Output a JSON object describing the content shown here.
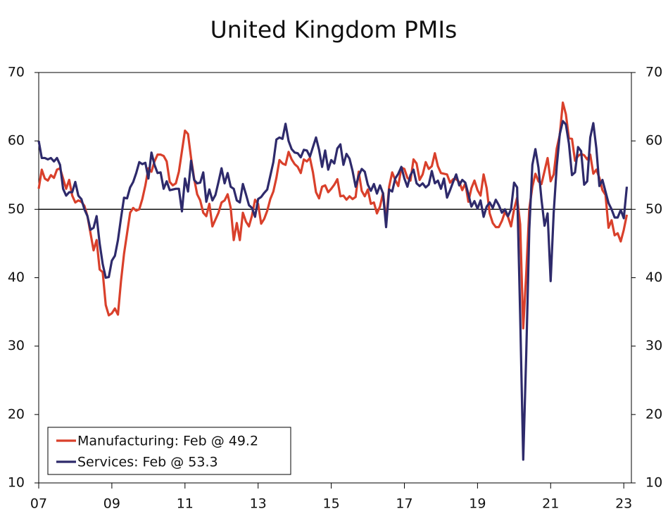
{
  "chart_data": {
    "type": "line",
    "title": "United Kingdom PMIs",
    "series": [
      {
        "name": "Manufacturing: Feb @ 49.2",
        "color": "#d9402b",
        "values": [
          53.0,
          55.8,
          54.5,
          54.2,
          55.0,
          54.6,
          55.8,
          56.0,
          54.5,
          53.0,
          54.3,
          52.0,
          51.0,
          51.3,
          51.1,
          50.5,
          49.0,
          46.5,
          44.0,
          45.5,
          41.2,
          40.8,
          36.0,
          34.5,
          34.8,
          35.5,
          34.6,
          39.5,
          43.5,
          46.5,
          49.5,
          50.2,
          49.8,
          50.0,
          51.5,
          53.5,
          56.0,
          55.5,
          57.0,
          58.0,
          58.0,
          57.8,
          57.0,
          54.0,
          53.5,
          53.8,
          55.5,
          58.5,
          61.5,
          61.0,
          57.5,
          54.5,
          52.2,
          51.3,
          49.5,
          49.0,
          50.8,
          47.5,
          48.5,
          49.5,
          51.0,
          51.3,
          52.2,
          50.2,
          45.5,
          48.0,
          45.5,
          49.5,
          48.2,
          47.5,
          49.1,
          51.4,
          50.8,
          47.9,
          48.6,
          49.8,
          51.5,
          52.6,
          54.6,
          57.2,
          56.7,
          56.5,
          58.4,
          57.3,
          56.6,
          56.2,
          55.3,
          57.3,
          57.0,
          57.5,
          55.4,
          52.5,
          51.6,
          53.3,
          53.5,
          52.5,
          53.0,
          53.6,
          54.4,
          51.9,
          52.0,
          51.4,
          51.9,
          51.5,
          51.8,
          55.5,
          52.7,
          51.9,
          52.9,
          50.8,
          51.0,
          49.4,
          50.4,
          52.4,
          48.3,
          53.3,
          55.4,
          54.3,
          53.4,
          56.1,
          55.9,
          54.6,
          54.2,
          57.3,
          56.7,
          54.3,
          55.1,
          56.9,
          55.9,
          56.3,
          58.2,
          56.3,
          55.3,
          55.2,
          55.1,
          53.9,
          54.4,
          54.4,
          54.0,
          52.8,
          53.8,
          51.1,
          53.1,
          54.2,
          52.8,
          52.0,
          55.1,
          53.1,
          49.4,
          48.0,
          47.4,
          47.4,
          48.3,
          49.6,
          48.9,
          47.5,
          50.0,
          51.7,
          47.8,
          32.6,
          40.7,
          50.1,
          53.3,
          55.2,
          54.1,
          53.7,
          55.6,
          57.5,
          54.1,
          55.1,
          58.9,
          60.9,
          65.6,
          63.9,
          60.4,
          60.3,
          57.1,
          57.8,
          58.1,
          57.9,
          57.3,
          58.0,
          55.2,
          55.8,
          54.6,
          52.8,
          52.1,
          47.3,
          48.4,
          46.2,
          46.5,
          45.3,
          47.0,
          49.2
        ]
      },
      {
        "name": "Services: Feb @ 53.3",
        "color": "#2e2a6b",
        "values": [
          60.0,
          57.5,
          57.5,
          57.3,
          57.5,
          57.0,
          57.5,
          56.5,
          53.0,
          52.0,
          52.5,
          52.5,
          54.0,
          52.0,
          51.5,
          50.0,
          49.0,
          47.0,
          47.3,
          49.0,
          45.0,
          42.0,
          40.0,
          40.1,
          42.5,
          43.2,
          45.5,
          48.7,
          51.7,
          51.6,
          53.2,
          54.0,
          55.3,
          56.9,
          56.6,
          56.8,
          54.5,
          58.3,
          56.5,
          55.3,
          55.4,
          53.0,
          54.1,
          52.8,
          52.9,
          53.0,
          53.0,
          49.7,
          54.5,
          52.6,
          57.1,
          54.3,
          53.8,
          53.9,
          55.4,
          51.1,
          52.9,
          51.3,
          52.1,
          54.0,
          56.0,
          53.8,
          55.3,
          53.3,
          53.0,
          51.3,
          51.0,
          53.7,
          52.2,
          50.6,
          50.2,
          48.9,
          51.5,
          51.8,
          52.4,
          52.9,
          54.9,
          56.9,
          60.2,
          60.5,
          60.3,
          62.5,
          60.0,
          58.8,
          58.3,
          58.2,
          57.6,
          58.7,
          58.6,
          57.7,
          59.1,
          60.5,
          58.7,
          56.2,
          58.6,
          55.8,
          57.2,
          56.7,
          58.9,
          59.5,
          56.5,
          58.1,
          57.4,
          55.6,
          53.3,
          54.9,
          55.9,
          55.5,
          53.6,
          52.7,
          53.7,
          52.3,
          53.5,
          52.3,
          47.4,
          52.9,
          52.6,
          54.5,
          55.2,
          56.2,
          54.5,
          53.3,
          55.0,
          55.8,
          53.8,
          53.4,
          53.8,
          53.2,
          53.6,
          55.6,
          53.8,
          54.2,
          53.0,
          54.5,
          51.7,
          52.8,
          54.0,
          55.1,
          53.5,
          54.3,
          53.9,
          52.2,
          50.4,
          51.2,
          50.1,
          51.3,
          48.9,
          50.4,
          51.0,
          50.2,
          51.4,
          50.6,
          49.5,
          50.0,
          49.0,
          50.0,
          53.9,
          53.2,
          34.5,
          13.4,
          29.0,
          47.1,
          56.5,
          58.8,
          56.1,
          51.4,
          47.6,
          49.4,
          39.5,
          49.5,
          56.3,
          61.0,
          62.9,
          62.4,
          59.6,
          55.0,
          55.4,
          59.1,
          58.5,
          53.6,
          54.1,
          60.5,
          62.6,
          58.9,
          53.4,
          54.3,
          52.6,
          50.9,
          50.0,
          48.8,
          48.8,
          49.9,
          48.7,
          53.3
        ]
      }
    ],
    "xlim": [
      0,
      194.5
    ],
    "xticks": [
      {
        "value": 0,
        "label": "07"
      },
      {
        "value": 24,
        "label": "09"
      },
      {
        "value": 48,
        "label": "11"
      },
      {
        "value": 72,
        "label": "13"
      },
      {
        "value": 96,
        "label": "15"
      },
      {
        "value": 120,
        "label": "17"
      },
      {
        "value": 144,
        "label": "19"
      },
      {
        "value": 168,
        "label": "21"
      },
      {
        "value": 192,
        "label": "23"
      }
    ],
    "ylim": [
      10,
      70
    ],
    "yticks": [
      10,
      20,
      30,
      40,
      50,
      60,
      70
    ],
    "reference_line": 50,
    "legend": "lower left"
  }
}
